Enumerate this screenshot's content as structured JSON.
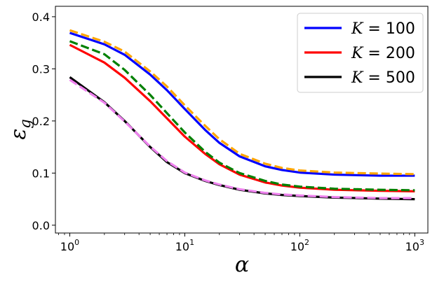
{
  "chart_data": {
    "type": "line",
    "xscale": "log",
    "xlim": [
      0.75,
      1300
    ],
    "ylim": [
      -0.015,
      0.42
    ],
    "xlabel": "α",
    "ylabel": "ε",
    "ylabel_sub": "g",
    "x_ticks": [
      {
        "value": 1,
        "base": "10",
        "exp": "0"
      },
      {
        "value": 10,
        "base": "10",
        "exp": "1"
      },
      {
        "value": 100,
        "base": "10",
        "exp": "2"
      },
      {
        "value": 1000,
        "base": "10",
        "exp": "3"
      }
    ],
    "y_ticks": [
      {
        "value": 0.0,
        "label": "0.0"
      },
      {
        "value": 0.1,
        "label": "0.1"
      },
      {
        "value": 0.2,
        "label": "0.2"
      },
      {
        "value": 0.3,
        "label": "0.3"
      },
      {
        "value": 0.4,
        "label": "0.4"
      }
    ],
    "legend_position": "top-right",
    "series": [
      {
        "name": "K = 100",
        "legend_var": "K",
        "legend_value": "100",
        "style": "solid",
        "color": "#0000ff",
        "x": [
          1,
          2,
          3,
          5,
          7,
          10,
          15,
          20,
          30,
          50,
          70,
          100,
          200,
          500,
          1000
        ],
        "y": [
          0.369,
          0.347,
          0.327,
          0.289,
          0.259,
          0.223,
          0.183,
          0.158,
          0.132,
          0.113,
          0.106,
          0.101,
          0.097,
          0.095,
          0.095
        ]
      },
      {
        "name": "",
        "style": "dashed",
        "color": "#ffa500",
        "x": [
          1,
          2,
          3,
          5,
          7,
          10,
          15,
          20,
          30,
          50,
          70,
          100,
          200,
          500,
          1000
        ],
        "y": [
          0.374,
          0.352,
          0.333,
          0.295,
          0.266,
          0.23,
          0.191,
          0.165,
          0.137,
          0.118,
          0.11,
          0.105,
          0.101,
          0.099,
          0.098
        ]
      },
      {
        "name": "K = 200",
        "legend_var": "K",
        "legend_value": "200",
        "style": "solid",
        "color": "#ff0000",
        "x": [
          1,
          2,
          3,
          5,
          7,
          10,
          15,
          20,
          30,
          50,
          70,
          100,
          200,
          500,
          1000
        ],
        "y": [
          0.346,
          0.312,
          0.283,
          0.238,
          0.205,
          0.17,
          0.137,
          0.117,
          0.097,
          0.082,
          0.076,
          0.072,
          0.068,
          0.066,
          0.065
        ]
      },
      {
        "name": "",
        "style": "dashed",
        "color": "#008000",
        "x": [
          1,
          2,
          3,
          5,
          7,
          10,
          15,
          20,
          30,
          50,
          70,
          100,
          200,
          500,
          1000
        ],
        "y": [
          0.353,
          0.328,
          0.298,
          0.25,
          0.215,
          0.178,
          0.141,
          0.12,
          0.1,
          0.085,
          0.078,
          0.074,
          0.07,
          0.068,
          0.067
        ]
      },
      {
        "name": "K = 500",
        "legend_var": "K",
        "legend_value": "500",
        "style": "solid",
        "color": "#000000",
        "x": [
          1,
          2,
          3,
          5,
          7,
          10,
          15,
          20,
          30,
          50,
          70,
          100,
          200,
          500,
          1000
        ],
        "y": [
          0.284,
          0.236,
          0.2,
          0.15,
          0.121,
          0.1,
          0.085,
          0.077,
          0.068,
          0.061,
          0.058,
          0.056,
          0.053,
          0.051,
          0.05
        ]
      },
      {
        "name": "",
        "style": "dashed",
        "color": "#ee82ee",
        "x": [
          1,
          2,
          3,
          5,
          7,
          10,
          15,
          20,
          30,
          50,
          70,
          100,
          200,
          500,
          1000
        ],
        "y": [
          0.279,
          0.235,
          0.199,
          0.151,
          0.123,
          0.101,
          0.086,
          0.078,
          0.069,
          0.062,
          0.059,
          0.057,
          0.054,
          0.052,
          0.052
        ]
      }
    ]
  }
}
